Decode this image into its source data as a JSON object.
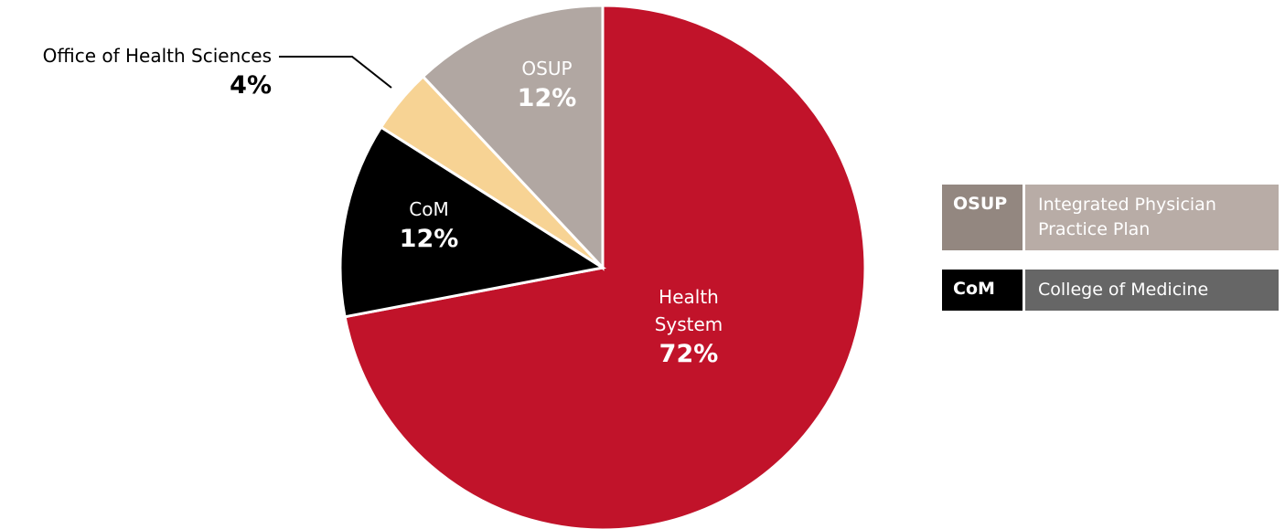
{
  "chart_data": {
    "type": "pie",
    "categories": [
      "Health System",
      "CoM",
      "Office of Health Sciences",
      "OSUP"
    ],
    "values": [
      72,
      12,
      4,
      12
    ],
    "value_labels": [
      "72%",
      "12%",
      "4%",
      "12%"
    ],
    "colors": [
      "#c1132a",
      "#000000",
      "#f7d394",
      "#b1a7a2"
    ],
    "legend_key": [
      {
        "abbr": "OSUP",
        "text": "Integrated Physician Practice Plan",
        "abbr_color": "#938780",
        "text_color": "#b8aca6"
      },
      {
        "abbr": "CoM",
        "text": "College of Medicine",
        "abbr_color": "#000000",
        "text_color": "#666666"
      }
    ]
  }
}
